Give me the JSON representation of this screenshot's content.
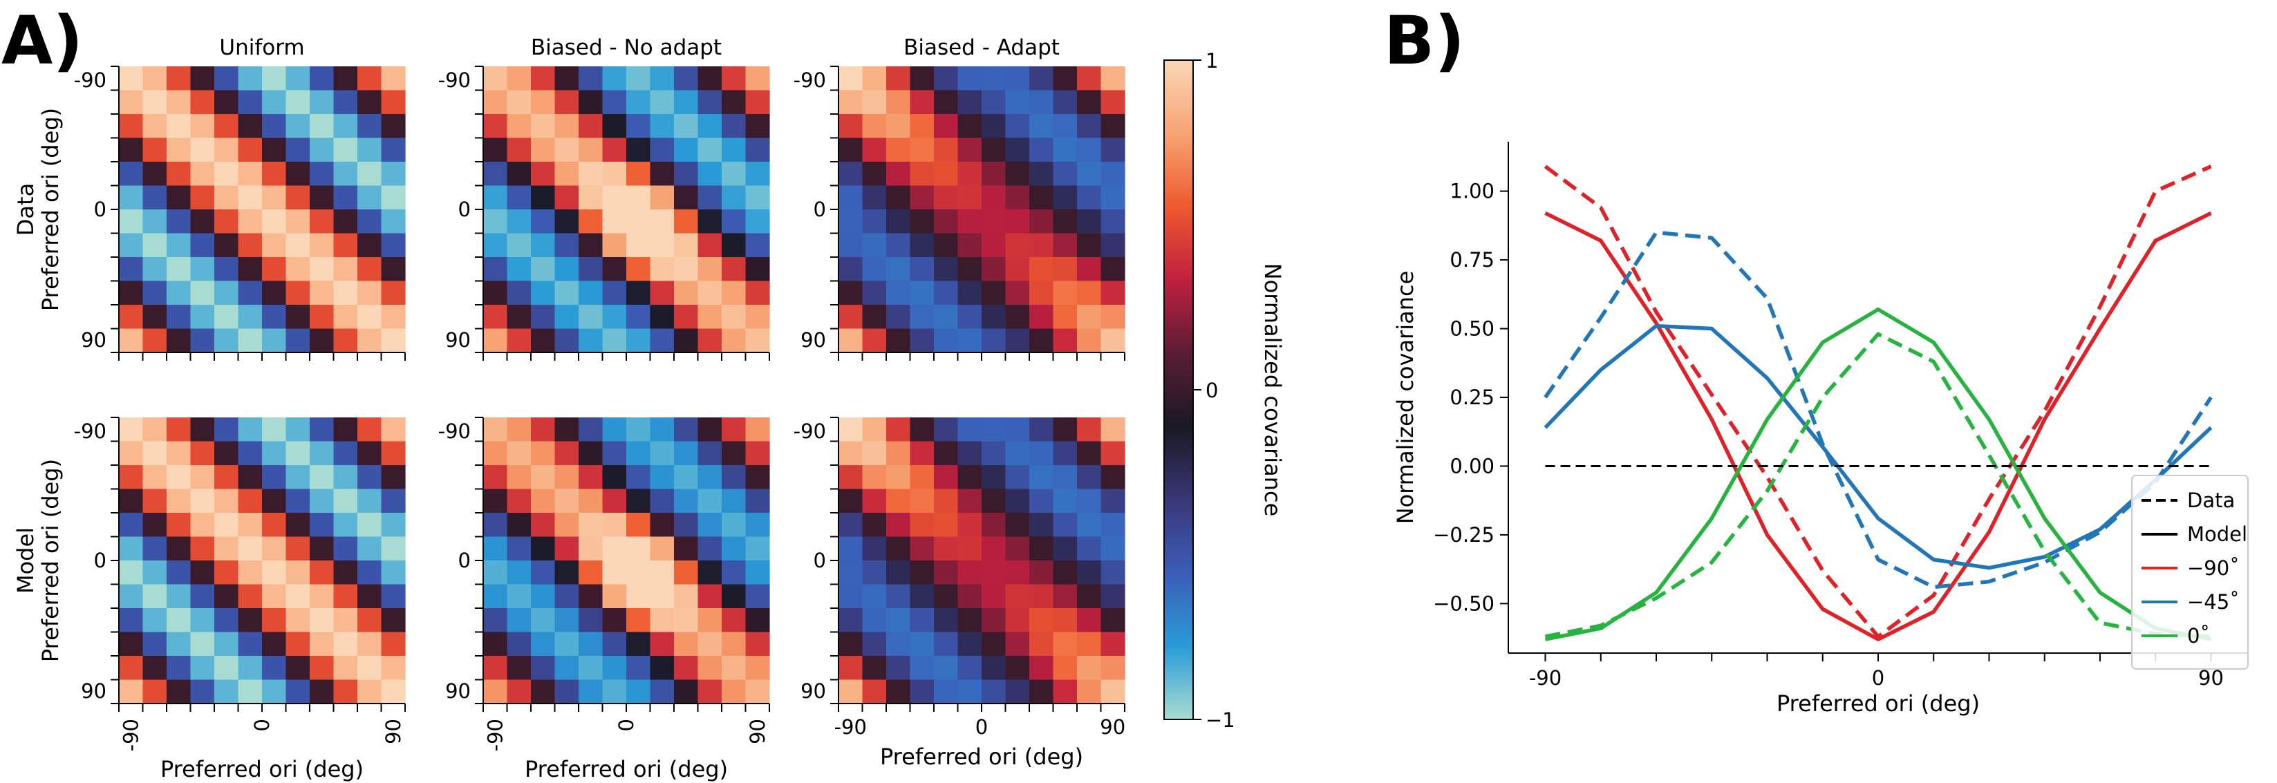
{
  "figure": {
    "panel_a_label": "A)",
    "panel_b_label": "B)"
  },
  "chart_data": [
    {
      "type": "heatmap",
      "panel": "A",
      "columns": [
        "Uniform",
        "Biased - No adapt",
        "Biased - Adapt"
      ],
      "rows": [
        {
          "name": "Data",
          "ylabel": "Preferred ori (deg)"
        },
        {
          "name": "Model",
          "ylabel": "Preferred ori (deg)"
        }
      ],
      "xlabel": "Preferred ori (deg)",
      "ytick_labels": [
        "-90",
        "0",
        "90"
      ],
      "xtick_labels": [
        "-90",
        "0",
        "90"
      ],
      "grid_size": 12,
      "value_range": [
        -1,
        1
      ],
      "colorbar": {
        "label": "Normalized covariance",
        "tick_labels": [
          "1",
          "0",
          "−1"
        ],
        "colors": [
          "#a8dcd2",
          "#2a9bd6",
          "#3b5db8",
          "#3a3777",
          "#191923",
          "#5a1d35",
          "#c0203f",
          "#ee5a2f",
          "#f7a373",
          "#fbd7b7"
        ]
      }
    },
    {
      "type": "line",
      "panel": "B",
      "x": [
        -90,
        -75,
        -60,
        -45,
        -30,
        -15,
        0,
        15,
        30,
        45,
        60,
        75,
        90
      ],
      "xticks": [
        -90,
        0,
        90
      ],
      "xtick_labels": [
        "-90",
        "0",
        "90"
      ],
      "xlabel": "Preferred ori (deg)",
      "ylabel": "Normalized covariance",
      "yticks": [
        "1.00",
        "0.75",
        "0.50",
        "0.25",
        "0.00",
        "−0.25",
        "−0.50"
      ],
      "ylim": [
        -0.68,
        1.18
      ],
      "xlim": [
        -100,
        100
      ],
      "series": [
        {
          "name": "−90° data",
          "color": "#e02228",
          "style": "dashed",
          "values": [
            1.09,
            0.94,
            0.56,
            0.26,
            -0.04,
            -0.38,
            -0.62,
            -0.47,
            -0.12,
            0.2,
            0.58,
            1.0,
            1.09
          ]
        },
        {
          "name": "−90° model",
          "color": "#e02228",
          "style": "solid",
          "values": [
            0.92,
            0.82,
            0.52,
            0.17,
            -0.25,
            -0.52,
            -0.63,
            -0.53,
            -0.24,
            0.17,
            0.5,
            0.82,
            0.92
          ]
        },
        {
          "name": "−45° data",
          "color": "#2176b8",
          "style": "dashed",
          "values": [
            0.25,
            0.54,
            0.85,
            0.83,
            0.61,
            0.08,
            -0.34,
            -0.44,
            -0.42,
            -0.35,
            -0.24,
            -0.06,
            0.25
          ]
        },
        {
          "name": "−45° model",
          "color": "#2176b8",
          "style": "solid",
          "values": [
            0.14,
            0.35,
            0.51,
            0.5,
            0.32,
            0.07,
            -0.19,
            -0.34,
            -0.37,
            -0.33,
            -0.23,
            -0.05,
            0.14
          ]
        },
        {
          "name": "0° data",
          "color": "#27b33f",
          "style": "dashed",
          "values": [
            -0.62,
            -0.58,
            -0.48,
            -0.35,
            -0.09,
            0.25,
            0.48,
            0.38,
            0.04,
            -0.31,
            -0.57,
            -0.61,
            -0.62
          ]
        },
        {
          "name": "0° model",
          "color": "#27b33f",
          "style": "solid",
          "values": [
            -0.63,
            -0.59,
            -0.46,
            -0.19,
            0.17,
            0.45,
            0.57,
            0.45,
            0.17,
            -0.19,
            -0.46,
            -0.59,
            -0.63
          ]
        },
        {
          "name": "zero line",
          "color": "#000000",
          "style": "dashed",
          "values": [
            0,
            0,
            0,
            0,
            0,
            0,
            0,
            0,
            0,
            0,
            0,
            0,
            0
          ]
        }
      ],
      "legend": {
        "position": "bottom-right",
        "entries": [
          {
            "label": "Data",
            "color": "#000000",
            "style": "dashed"
          },
          {
            "label": "Model",
            "color": "#000000",
            "style": "solid"
          },
          {
            "label": "−90˚",
            "color": "#e02228",
            "style": "solid"
          },
          {
            "label": "−45˚",
            "color": "#2176b8",
            "style": "solid"
          },
          {
            "label": "0˚",
            "color": "#27b33f",
            "style": "solid"
          }
        ]
      }
    }
  ]
}
